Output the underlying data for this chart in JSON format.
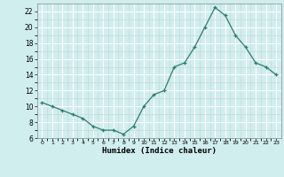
{
  "x": [
    0,
    1,
    2,
    3,
    4,
    5,
    6,
    7,
    8,
    9,
    10,
    11,
    12,
    13,
    14,
    15,
    16,
    17,
    18,
    19,
    20,
    21,
    22,
    23
  ],
  "y": [
    10.5,
    10.0,
    9.5,
    9.0,
    8.5,
    7.5,
    7.0,
    7.0,
    6.5,
    7.5,
    10.0,
    11.5,
    12.0,
    15.0,
    15.5,
    17.5,
    20.0,
    22.5,
    21.5,
    19.0,
    17.5,
    15.5,
    15.0,
    14.0
  ],
  "line_color": "#2e7d6e",
  "marker": "+",
  "marker_size": 3,
  "xlabel": "Humidex (Indice chaleur)",
  "ylim": [
    6,
    23
  ],
  "yticks": [
    6,
    8,
    10,
    12,
    14,
    16,
    18,
    20,
    22
  ],
  "xlim": [
    -0.5,
    23.5
  ],
  "xticks": [
    0,
    1,
    2,
    3,
    4,
    5,
    6,
    7,
    8,
    9,
    10,
    11,
    12,
    13,
    14,
    15,
    16,
    17,
    18,
    19,
    20,
    21,
    22,
    23
  ],
  "bg_color": "#d0eeee",
  "grid_color": "#ffffff",
  "grid_major_color": "#c8d8d8"
}
